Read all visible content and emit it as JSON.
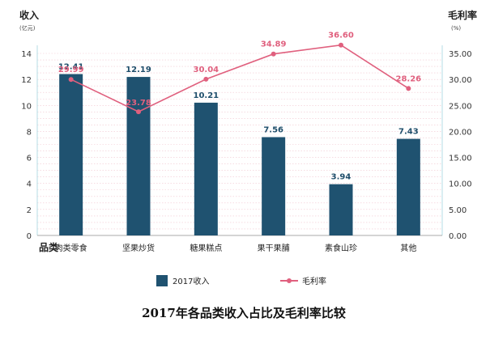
{
  "chart_data": {
    "type": "bar+line",
    "title": "2017年各品类收入占比及毛利率比较",
    "categories_label": "品类",
    "categories": [
      "肉类零食",
      "坚果炒货",
      "糖果糕点",
      "果干果脯",
      "素食山珍",
      "其他"
    ],
    "series": [
      {
        "name": "2017收入",
        "type": "bar",
        "axis": "left",
        "values": [
          12.41,
          12.19,
          10.21,
          7.56,
          3.94,
          7.43
        ],
        "labels": [
          "12.41",
          "12.19",
          "10.21",
          "7.56",
          "3.94",
          "7.43"
        ],
        "color": "#1f5270"
      },
      {
        "name": "毛利率",
        "type": "line",
        "axis": "right",
        "values": [
          29.99,
          23.78,
          30.04,
          34.89,
          36.6,
          28.26
        ],
        "labels": [
          "29.99",
          "23.78",
          "30.04",
          "34.89",
          "36.60",
          "28.26"
        ],
        "color": "#e0607e"
      }
    ],
    "y_left": {
      "label": "收入",
      "unit": "(亿元)",
      "ylim": [
        0,
        14
      ],
      "ticks": [
        "0",
        "2",
        "4",
        "6",
        "8",
        "10",
        "12",
        "14"
      ]
    },
    "y_right": {
      "label": "毛利率",
      "unit": "(%)",
      "ylim": [
        0,
        35
      ],
      "ticks": [
        "0.00",
        "5.00",
        "10.00",
        "15.00",
        "20.00",
        "25.00",
        "30.00",
        "35.00"
      ]
    },
    "grid": true,
    "legend": "bottom"
  }
}
